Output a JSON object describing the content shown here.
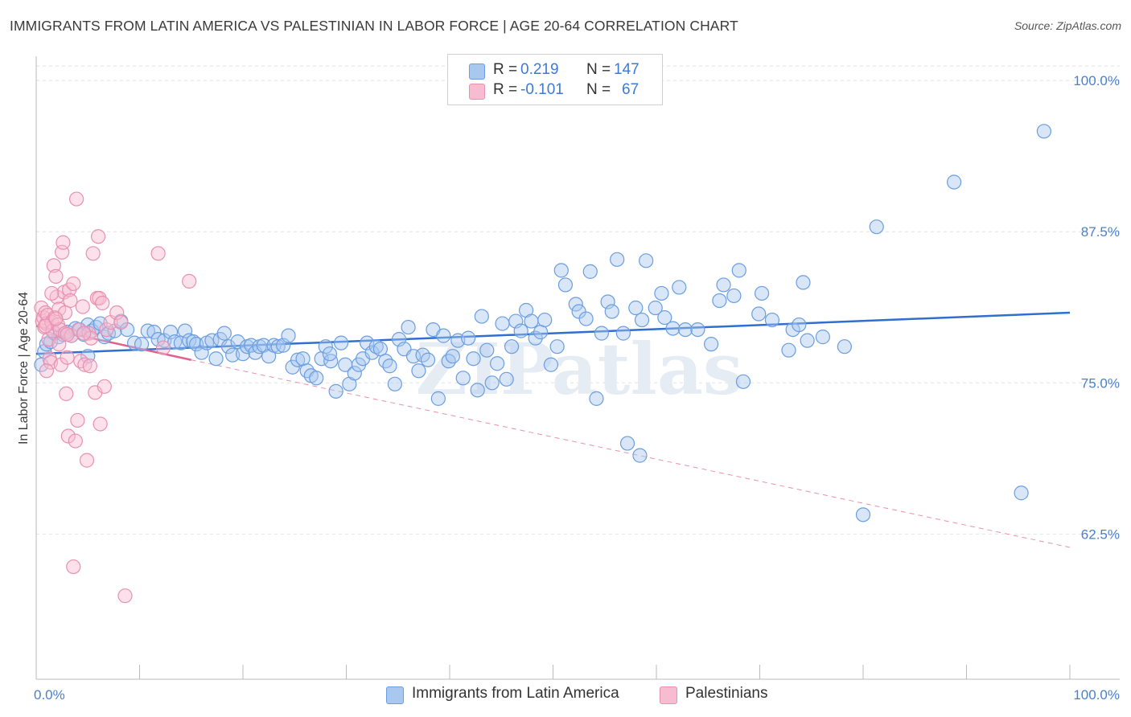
{
  "title": "IMMIGRANTS FROM LATIN AMERICA VS PALESTINIAN IN LABOR FORCE | AGE 20-64 CORRELATION CHART",
  "source": "Source: ZipAtlas.com",
  "watermark": "ZIPatlas",
  "legend": {
    "rows": [
      {
        "r_label": "R =",
        "r_value": "0.219",
        "n_label": "N =",
        "n_value": "147",
        "color": "#a8c8f0",
        "border": "#6a9ee0"
      },
      {
        "r_label": "R =",
        "r_value": "-0.101",
        "n_label": "N =",
        "n_value": "67",
        "color": "#f8bcd0",
        "border": "#e890b0"
      }
    ]
  },
  "bottom_legend": [
    {
      "label": "Immigrants from Latin America",
      "color": "#a8c8f0",
      "border": "#6a9ee0"
    },
    {
      "label": "Palestinians",
      "color": "#f8bcd0",
      "border": "#e890b0"
    }
  ],
  "chart_data": {
    "type": "scatter",
    "ylabel": "In Labor Force | Age 20-64",
    "xlim": [
      0,
      100
    ],
    "ylim": [
      50.5,
      102
    ],
    "x_tick_labels": [
      "0.0%",
      "100.0%"
    ],
    "y_ticks": [
      {
        "value": 100.0,
        "label": "100.0%"
      },
      {
        "value": 87.5,
        "label": "87.5%"
      },
      {
        "value": 75.0,
        "label": "75.0%"
      },
      {
        "value": 62.5,
        "label": "62.5%"
      }
    ],
    "grid": "horizontal dashed",
    "series": [
      {
        "name": "Immigrants from Latin America",
        "color": "#6a9ee0",
        "fill": "rgba(168,200,240,0.45)",
        "trend": {
          "x0": 0,
          "y0": 77.4,
          "x1": 100,
          "y1": 80.8,
          "dashed": false
        },
        "points": [
          [
            0.5,
            76.5
          ],
          [
            0.8,
            77.6
          ],
          [
            1.0,
            78.2
          ],
          [
            1.4,
            78.4
          ],
          [
            1.8,
            79.1
          ],
          [
            2.2,
            78.8
          ],
          [
            2.6,
            79.0
          ],
          [
            3.0,
            79.2
          ],
          [
            3.4,
            78.9
          ],
          [
            3.8,
            79.5
          ],
          [
            4.2,
            79.4
          ],
          [
            4.6,
            79.0
          ],
          [
            5.0,
            79.8
          ],
          [
            5.4,
            79.3
          ],
          [
            5.8,
            79.6
          ],
          [
            6.2,
            79.9
          ],
          [
            6.6,
            78.8
          ],
          [
            7.0,
            79.1
          ],
          [
            7.6,
            79.3
          ],
          [
            8.2,
            80.1
          ],
          [
            8.8,
            79.4
          ],
          [
            9.5,
            78.3
          ],
          [
            10.2,
            78.2
          ],
          [
            10.8,
            79.3
          ],
          [
            11.4,
            79.2
          ],
          [
            11.8,
            78.6
          ],
          [
            12.4,
            78.5
          ],
          [
            13.0,
            79.2
          ],
          [
            13.4,
            78.4
          ],
          [
            14.0,
            78.3
          ],
          [
            14.4,
            79.3
          ],
          [
            14.8,
            78.5
          ],
          [
            15.2,
            78.4
          ],
          [
            15.5,
            78.2
          ],
          [
            16.0,
            77.5
          ],
          [
            16.5,
            78.3
          ],
          [
            17.0,
            78.5
          ],
          [
            17.4,
            77.0
          ],
          [
            17.8,
            78.6
          ],
          [
            18.2,
            79.1
          ],
          [
            18.6,
            78.0
          ],
          [
            19.0,
            77.3
          ],
          [
            19.5,
            78.4
          ],
          [
            20.0,
            77.4
          ],
          [
            20.4,
            78.0
          ],
          [
            20.8,
            78.1
          ],
          [
            21.2,
            77.5
          ],
          [
            21.6,
            78.0
          ],
          [
            22.0,
            78.1
          ],
          [
            22.5,
            77.2
          ],
          [
            23.0,
            78.1
          ],
          [
            23.4,
            78.0
          ],
          [
            23.9,
            78.1
          ],
          [
            24.4,
            78.9
          ],
          [
            24.8,
            76.3
          ],
          [
            25.3,
            76.9
          ],
          [
            25.8,
            77.0
          ],
          [
            26.2,
            76.0
          ],
          [
            26.6,
            75.6
          ],
          [
            27.1,
            75.4
          ],
          [
            27.6,
            77.0
          ],
          [
            28.0,
            78.0
          ],
          [
            28.5,
            76.8
          ],
          [
            29.0,
            74.3
          ],
          [
            29.5,
            78.3
          ],
          [
            29.9,
            76.5
          ],
          [
            30.3,
            74.9
          ],
          [
            30.8,
            75.8
          ],
          [
            31.2,
            76.5
          ],
          [
            31.6,
            77.0
          ],
          [
            32.0,
            78.3
          ],
          [
            32.5,
            77.5
          ],
          [
            32.9,
            78.0
          ],
          [
            33.3,
            77.8
          ],
          [
            33.8,
            76.8
          ],
          [
            34.2,
            76.4
          ],
          [
            34.7,
            74.9
          ],
          [
            35.1,
            78.6
          ],
          [
            35.6,
            77.8
          ],
          [
            36.0,
            79.6
          ],
          [
            36.5,
            77.2
          ],
          [
            37.0,
            76.0
          ],
          [
            37.4,
            77.3
          ],
          [
            37.9,
            76.9
          ],
          [
            38.4,
            79.4
          ],
          [
            38.9,
            73.7
          ],
          [
            39.4,
            78.9
          ],
          [
            39.9,
            76.8
          ],
          [
            40.3,
            77.2
          ],
          [
            40.8,
            78.5
          ],
          [
            41.3,
            75.4
          ],
          [
            41.8,
            78.7
          ],
          [
            42.3,
            77.0
          ],
          [
            42.7,
            74.4
          ],
          [
            43.1,
            80.5
          ],
          [
            43.6,
            77.7
          ],
          [
            44.1,
            75.0
          ],
          [
            44.6,
            76.6
          ],
          [
            45.1,
            79.9
          ],
          [
            45.5,
            75.3
          ],
          [
            46.0,
            78.0
          ],
          [
            46.4,
            80.1
          ],
          [
            46.9,
            79.3
          ],
          [
            47.4,
            81.0
          ],
          [
            47.9,
            80.1
          ],
          [
            48.3,
            78.7
          ],
          [
            48.8,
            79.2
          ],
          [
            49.2,
            80.2
          ],
          [
            49.8,
            76.5
          ],
          [
            50.4,
            78.0
          ],
          [
            50.8,
            84.3
          ],
          [
            51.2,
            83.1
          ],
          [
            52.2,
            81.5
          ],
          [
            52.5,
            80.9
          ],
          [
            53.2,
            80.3
          ],
          [
            53.6,
            84.2
          ],
          [
            54.2,
            73.7
          ],
          [
            54.7,
            79.1
          ],
          [
            55.3,
            81.7
          ],
          [
            55.7,
            80.9
          ],
          [
            56.2,
            85.2
          ],
          [
            56.8,
            79.1
          ],
          [
            57.2,
            70.0
          ],
          [
            58.0,
            81.2
          ],
          [
            58.4,
            69.0
          ],
          [
            59.0,
            85.1
          ],
          [
            59.9,
            81.2
          ],
          [
            60.5,
            82.4
          ],
          [
            60.8,
            80.4
          ],
          [
            61.6,
            79.5
          ],
          [
            62.2,
            82.9
          ],
          [
            62.8,
            79.4
          ],
          [
            64.0,
            79.4
          ],
          [
            65.3,
            78.2
          ],
          [
            66.1,
            81.8
          ],
          [
            66.5,
            83.1
          ],
          [
            67.5,
            82.2
          ],
          [
            68.0,
            84.3
          ],
          [
            68.4,
            75.1
          ],
          [
            69.9,
            80.7
          ],
          [
            70.2,
            82.4
          ],
          [
            71.2,
            80.2
          ],
          [
            72.8,
            77.7
          ],
          [
            73.2,
            79.4
          ],
          [
            73.8,
            79.8
          ],
          [
            74.2,
            83.3
          ],
          [
            74.6,
            78.5
          ],
          [
            76.1,
            78.8
          ],
          [
            78.2,
            78.0
          ],
          [
            80.0,
            64.1
          ],
          [
            81.3,
            87.9
          ],
          [
            88.8,
            91.6
          ],
          [
            95.3,
            65.9
          ],
          [
            97.5,
            95.8
          ],
          [
            5.0,
            77.2
          ],
          [
            28.4,
            77.4
          ],
          [
            58.6,
            80.2
          ]
        ]
      },
      {
        "name": "Palestinians",
        "color": "#e890b0",
        "fill": "rgba(248,188,208,0.45)",
        "trend": {
          "x0": 0,
          "y0": 79.7,
          "x1": 15,
          "y1": 76.9,
          "dashed": false
        },
        "trend_ext": {
          "x0": 15,
          "y0": 76.9,
          "x1": 100,
          "y1": 61.4,
          "dashed": true
        },
        "points": [
          [
            0.5,
            81.2
          ],
          [
            0.6,
            80.1
          ],
          [
            0.7,
            80.4
          ],
          [
            0.8,
            79.6
          ],
          [
            0.9,
            80.8
          ],
          [
            1.0,
            79.9
          ],
          [
            1.1,
            80.6
          ],
          [
            1.2,
            78.6
          ],
          [
            1.3,
            77.0
          ],
          [
            1.4,
            76.7
          ],
          [
            1.5,
            80.0
          ],
          [
            1.6,
            79.3
          ],
          [
            1.7,
            84.7
          ],
          [
            1.8,
            80.4
          ],
          [
            1.9,
            83.8
          ],
          [
            2.0,
            82.1
          ],
          [
            2.1,
            79.8
          ],
          [
            2.2,
            81.1
          ],
          [
            2.3,
            79.4
          ],
          [
            2.4,
            76.5
          ],
          [
            2.5,
            85.8
          ],
          [
            2.6,
            86.6
          ],
          [
            2.7,
            82.5
          ],
          [
            2.8,
            79.1
          ],
          [
            2.9,
            74.1
          ],
          [
            3.0,
            77.1
          ],
          [
            3.1,
            70.6
          ],
          [
            3.2,
            82.7
          ],
          [
            3.3,
            81.8
          ],
          [
            3.4,
            78.9
          ],
          [
            3.6,
            83.2
          ],
          [
            3.8,
            70.2
          ],
          [
            3.9,
            90.2
          ],
          [
            4.0,
            71.9
          ],
          [
            4.1,
            79.4
          ],
          [
            4.3,
            76.8
          ],
          [
            4.5,
            81.3
          ],
          [
            4.7,
            76.5
          ],
          [
            4.9,
            68.6
          ],
          [
            5.1,
            79.1
          ],
          [
            5.3,
            78.7
          ],
          [
            5.5,
            85.7
          ],
          [
            5.7,
            74.2
          ],
          [
            5.9,
            82.0
          ],
          [
            6.0,
            87.1
          ],
          [
            6.1,
            82.0
          ],
          [
            6.2,
            71.6
          ],
          [
            6.4,
            81.6
          ],
          [
            6.6,
            74.7
          ],
          [
            6.8,
            79.4
          ],
          [
            7.2,
            80.0
          ],
          [
            7.8,
            80.8
          ],
          [
            8.2,
            80.0
          ],
          [
            8.6,
            57.4
          ],
          [
            11.8,
            85.7
          ],
          [
            12.3,
            77.9
          ],
          [
            14.8,
            83.4
          ],
          [
            3.6,
            59.8
          ],
          [
            1.0,
            76.0
          ],
          [
            2.2,
            78.2
          ],
          [
            3.0,
            79.0
          ],
          [
            1.5,
            82.4
          ],
          [
            2.8,
            80.8
          ],
          [
            4.6,
            79.1
          ],
          [
            0.9,
            79.7
          ],
          [
            1.9,
            80.3
          ],
          [
            5.2,
            76.4
          ]
        ]
      }
    ]
  }
}
